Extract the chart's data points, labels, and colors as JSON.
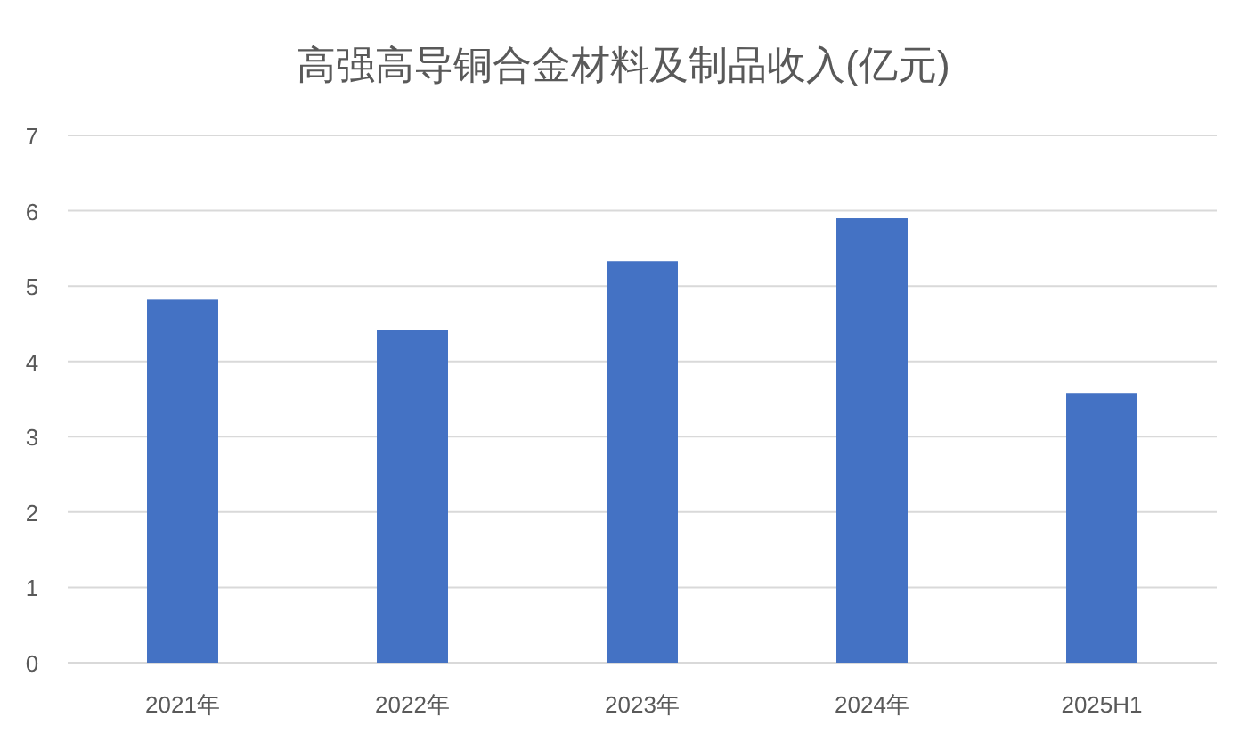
{
  "chart_data": {
    "type": "bar",
    "title": "高强高导铜合金材料及制品收入(亿元)",
    "categories": [
      "2021年",
      "2022年",
      "2023年",
      "2024年",
      "2025H1"
    ],
    "values": [
      4.82,
      4.42,
      5.33,
      5.9,
      3.58
    ],
    "color": "#4472c4",
    "ylim": [
      0,
      7
    ],
    "yticks": [
      0,
      1,
      2,
      3,
      4,
      5,
      6,
      7
    ],
    "grid": "y"
  }
}
